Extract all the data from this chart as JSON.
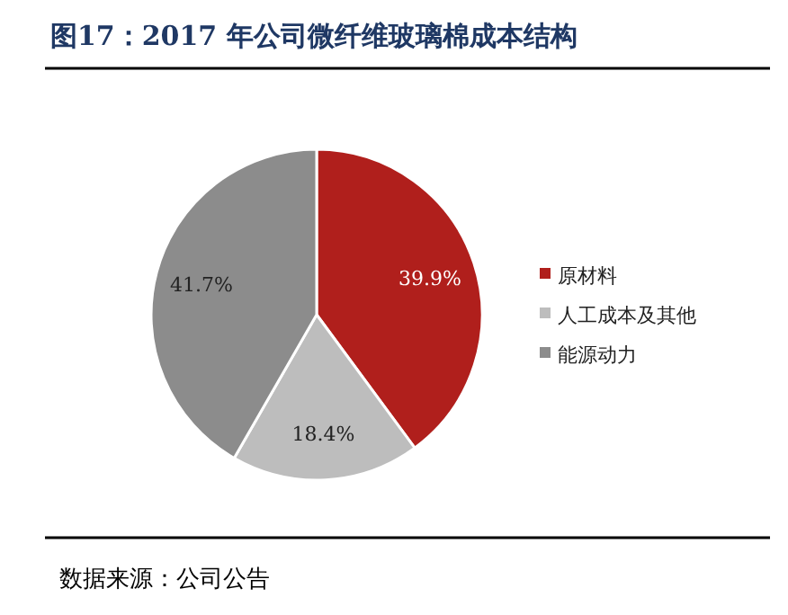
{
  "chart_data": {
    "type": "pie",
    "title": "图17：2017 年公司微纤维玻璃棉成本结构",
    "categories": [
      "原材料",
      "人工成本及其他",
      "能源动力"
    ],
    "values": [
      39.9,
      18.4,
      41.7
    ],
    "colors": [
      "#b01f1c",
      "#bdbdbd",
      "#8c8c8c"
    ],
    "value_labels": [
      "39.9%",
      "18.4%",
      "41.7%"
    ],
    "legend": "right",
    "annotations": [
      "数据来源：公司公告"
    ]
  }
}
